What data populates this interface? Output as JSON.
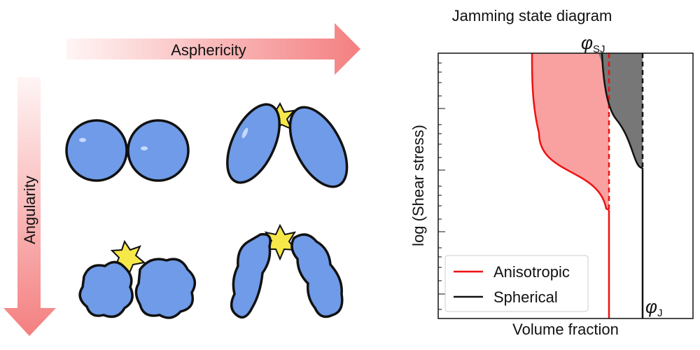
{
  "arrows": {
    "horizontal": "Asphericity",
    "vertical": "Angularity"
  },
  "diagram": {
    "title": "Jamming state diagram",
    "y_label": "log (Shear stress)",
    "x_label": "Volume fraction",
    "annotations": [
      {
        "symbol": "φ",
        "subscript": "SJ"
      },
      {
        "symbol": "φ",
        "subscript": "J"
      }
    ],
    "legend": [
      "Anisotropic",
      "Spherical"
    ]
  }
}
